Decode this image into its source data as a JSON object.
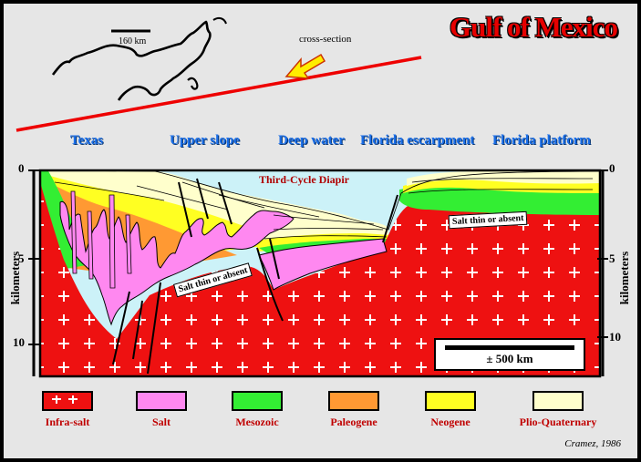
{
  "title": "Gulf of Mexico",
  "map": {
    "scale_label": "160 km",
    "cross_section_label": "cross-section"
  },
  "regions": [
    "Texas",
    "Upper slope",
    "Deep water",
    "Florida  escarpment",
    "Florida  platform"
  ],
  "depth_axis": {
    "label": "kilometers",
    "ticks": [
      "0",
      "5",
      "10"
    ]
  },
  "annotations": {
    "diapir": "Third-Cycle Diapir",
    "salt_thin_left": "Salt thin or absent",
    "salt_thin_right": "Salt thin or absent"
  },
  "scale_bar": {
    "label": "± 500 km"
  },
  "legend": [
    {
      "label": "Infra-salt",
      "color": "#ee1111"
    },
    {
      "label": "Salt",
      "color": "#ff88f0"
    },
    {
      "label": "Mesozoic",
      "color": "#33ee33"
    },
    {
      "label": "Paleogene",
      "color": "#ff9933"
    },
    {
      "label": "Neogene",
      "color": "#ffff22"
    },
    {
      "label": "Plio-Quaternary",
      "color": "#ffffcc"
    }
  ],
  "credit": "Cramez, 1986"
}
